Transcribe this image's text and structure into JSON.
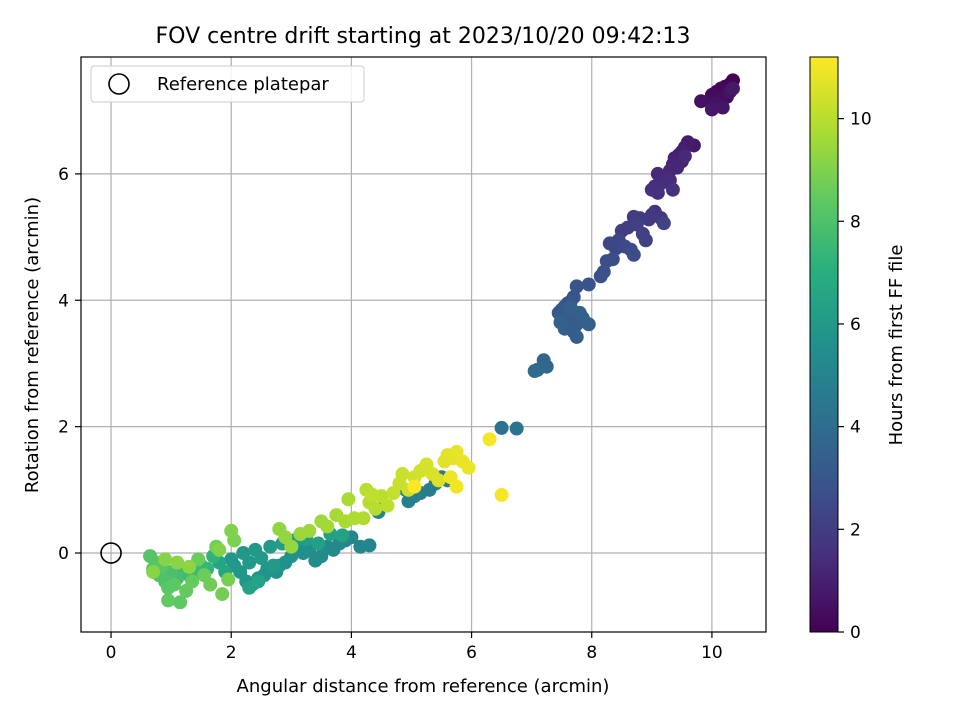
{
  "chart_data": {
    "type": "scatter",
    "title": "FOV centre drift starting at 2023/10/20 09:42:13",
    "xlabel": "Angular distance from reference (arcmin)",
    "ylabel": "Rotation from reference (arcmin)",
    "xlim": [
      -0.5,
      10.9
    ],
    "ylim": [
      -1.25,
      7.85
    ],
    "xticks": [
      0,
      2,
      4,
      6,
      8,
      10
    ],
    "yticks": [
      0,
      2,
      4,
      6
    ],
    "grid": true,
    "legend": {
      "location": "upper-left",
      "entries": [
        {
          "label": "Reference platepar",
          "marker": "open-circle"
        }
      ]
    },
    "reference_point": {
      "x": 0,
      "y": 0
    },
    "colorbar": {
      "label": "Hours from first FF file",
      "min": 0,
      "max": 11.2,
      "ticks": [
        0,
        2,
        4,
        6,
        8,
        10
      ],
      "colormap": "viridis"
    },
    "points": [
      {
        "x": 10.35,
        "y": 7.48,
        "c": 0.05
      },
      {
        "x": 10.3,
        "y": 7.42,
        "c": 0.1
      },
      {
        "x": 10.22,
        "y": 7.38,
        "c": 0.15
      },
      {
        "x": 10.15,
        "y": 7.35,
        "c": 0.2
      },
      {
        "x": 10.08,
        "y": 7.3,
        "c": 0.25
      },
      {
        "x": 10.0,
        "y": 7.25,
        "c": 0.3
      },
      {
        "x": 10.25,
        "y": 7.22,
        "c": 0.35
      },
      {
        "x": 10.12,
        "y": 7.18,
        "c": 0.4
      },
      {
        "x": 9.98,
        "y": 7.15,
        "c": 0.45
      },
      {
        "x": 9.82,
        "y": 7.15,
        "c": 0.5
      },
      {
        "x": 10.05,
        "y": 7.1,
        "c": 0.55
      },
      {
        "x": 10.3,
        "y": 7.3,
        "c": 0.6
      },
      {
        "x": 10.18,
        "y": 7.05,
        "c": 0.65
      },
      {
        "x": 10.0,
        "y": 7.02,
        "c": 0.7
      },
      {
        "x": 10.35,
        "y": 7.35,
        "c": 0.72
      },
      {
        "x": 9.7,
        "y": 6.45,
        "c": 0.8
      },
      {
        "x": 9.6,
        "y": 6.5,
        "c": 0.85
      },
      {
        "x": 9.55,
        "y": 6.42,
        "c": 0.9
      },
      {
        "x": 9.5,
        "y": 6.35,
        "c": 0.95
      },
      {
        "x": 9.45,
        "y": 6.3,
        "c": 1.0
      },
      {
        "x": 9.38,
        "y": 6.25,
        "c": 1.05
      },
      {
        "x": 9.5,
        "y": 6.2,
        "c": 1.1
      },
      {
        "x": 9.35,
        "y": 6.15,
        "c": 1.15
      },
      {
        "x": 9.42,
        "y": 6.1,
        "c": 1.2
      },
      {
        "x": 9.3,
        "y": 6.05,
        "c": 1.25
      },
      {
        "x": 9.55,
        "y": 6.28,
        "c": 1.28
      },
      {
        "x": 9.1,
        "y": 6.0,
        "c": 1.3
      },
      {
        "x": 9.2,
        "y": 5.95,
        "c": 1.35
      },
      {
        "x": 9.3,
        "y": 5.9,
        "c": 1.4
      },
      {
        "x": 9.15,
        "y": 5.85,
        "c": 1.45
      },
      {
        "x": 9.05,
        "y": 5.8,
        "c": 1.5
      },
      {
        "x": 9.0,
        "y": 5.75,
        "c": 1.55
      },
      {
        "x": 9.1,
        "y": 5.7,
        "c": 1.6
      },
      {
        "x": 9.35,
        "y": 5.75,
        "c": 1.62
      },
      {
        "x": 9.05,
        "y": 5.4,
        "c": 1.7
      },
      {
        "x": 9.0,
        "y": 5.35,
        "c": 1.75
      },
      {
        "x": 9.15,
        "y": 5.3,
        "c": 1.8
      },
      {
        "x": 8.95,
        "y": 5.28,
        "c": 1.85
      },
      {
        "x": 8.8,
        "y": 5.3,
        "c": 1.9
      },
      {
        "x": 8.7,
        "y": 5.32,
        "c": 1.95
      },
      {
        "x": 8.6,
        "y": 5.15,
        "c": 2.0
      },
      {
        "x": 8.5,
        "y": 5.1,
        "c": 2.05
      },
      {
        "x": 8.75,
        "y": 5.2,
        "c": 2.1
      },
      {
        "x": 8.85,
        "y": 5.05,
        "c": 2.15
      },
      {
        "x": 8.9,
        "y": 4.95,
        "c": 2.2
      },
      {
        "x": 9.2,
        "y": 5.22,
        "c": 2.22
      },
      {
        "x": 8.45,
        "y": 4.95,
        "c": 2.3
      },
      {
        "x": 8.3,
        "y": 4.9,
        "c": 2.35
      },
      {
        "x": 8.4,
        "y": 4.82,
        "c": 2.4
      },
      {
        "x": 8.55,
        "y": 4.85,
        "c": 2.45
      },
      {
        "x": 8.65,
        "y": 4.8,
        "c": 2.5
      },
      {
        "x": 8.7,
        "y": 4.72,
        "c": 2.55
      },
      {
        "x": 8.35,
        "y": 4.65,
        "c": 2.6
      },
      {
        "x": 8.25,
        "y": 4.62,
        "c": 2.65
      },
      {
        "x": 8.2,
        "y": 4.45,
        "c": 2.7
      },
      {
        "x": 8.15,
        "y": 4.38,
        "c": 2.75
      },
      {
        "x": 7.95,
        "y": 4.25,
        "c": 2.8
      },
      {
        "x": 7.75,
        "y": 4.22,
        "c": 2.85
      },
      {
        "x": 7.7,
        "y": 4.05,
        "c": 2.9
      },
      {
        "x": 7.65,
        "y": 3.98,
        "c": 2.95
      },
      {
        "x": 7.6,
        "y": 3.95,
        "c": 3.0
      },
      {
        "x": 7.55,
        "y": 3.9,
        "c": 3.02
      },
      {
        "x": 7.5,
        "y": 3.85,
        "c": 3.05
      },
      {
        "x": 7.45,
        "y": 3.8,
        "c": 3.08
      },
      {
        "x": 7.5,
        "y": 3.75,
        "c": 3.1
      },
      {
        "x": 7.55,
        "y": 3.7,
        "c": 3.12
      },
      {
        "x": 7.6,
        "y": 3.82,
        "c": 3.15
      },
      {
        "x": 7.65,
        "y": 3.75,
        "c": 3.18
      },
      {
        "x": 7.7,
        "y": 3.68,
        "c": 3.2
      },
      {
        "x": 7.75,
        "y": 3.62,
        "c": 3.22
      },
      {
        "x": 7.6,
        "y": 3.6,
        "c": 3.25
      },
      {
        "x": 7.55,
        "y": 3.55,
        "c": 3.28
      },
      {
        "x": 7.7,
        "y": 3.5,
        "c": 3.3
      },
      {
        "x": 7.75,
        "y": 3.42,
        "c": 3.32
      },
      {
        "x": 7.65,
        "y": 3.88,
        "c": 3.35
      },
      {
        "x": 7.8,
        "y": 3.8,
        "c": 3.38
      },
      {
        "x": 7.85,
        "y": 3.72,
        "c": 3.4
      },
      {
        "x": 7.95,
        "y": 3.62,
        "c": 3.42
      },
      {
        "x": 7.48,
        "y": 3.65,
        "c": 3.45
      },
      {
        "x": 7.2,
        "y": 3.05,
        "c": 3.6
      },
      {
        "x": 7.25,
        "y": 2.95,
        "c": 3.7
      },
      {
        "x": 7.1,
        "y": 2.9,
        "c": 3.8
      },
      {
        "x": 7.05,
        "y": 2.88,
        "c": 3.85
      },
      {
        "x": 6.5,
        "y": 1.98,
        "c": 4.2
      },
      {
        "x": 6.75,
        "y": 1.97,
        "c": 4.3
      },
      {
        "x": 5.5,
        "y": 1.2,
        "c": 4.5
      },
      {
        "x": 5.6,
        "y": 1.15,
        "c": 4.55
      },
      {
        "x": 5.4,
        "y": 1.1,
        "c": 4.6
      },
      {
        "x": 5.3,
        "y": 1.0,
        "c": 4.65
      },
      {
        "x": 5.15,
        "y": 0.95,
        "c": 4.7
      },
      {
        "x": 5.05,
        "y": 0.9,
        "c": 4.75
      },
      {
        "x": 4.95,
        "y": 0.82,
        "c": 4.8
      },
      {
        "x": 4.9,
        "y": 1.0,
        "c": 4.85
      },
      {
        "x": 4.55,
        "y": 0.75,
        "c": 4.9
      },
      {
        "x": 4.45,
        "y": 0.65,
        "c": 4.95
      },
      {
        "x": 4.3,
        "y": 0.12,
        "c": 5.0
      },
      {
        "x": 4.15,
        "y": 0.1,
        "c": 5.05
      },
      {
        "x": 4.0,
        "y": 0.25,
        "c": 5.1
      },
      {
        "x": 3.9,
        "y": 0.2,
        "c": 5.15
      },
      {
        "x": 3.8,
        "y": 0.15,
        "c": 5.2
      },
      {
        "x": 3.7,
        "y": 0.05,
        "c": 5.25
      },
      {
        "x": 3.6,
        "y": 0.1,
        "c": 5.3
      },
      {
        "x": 3.5,
        "y": -0.05,
        "c": 5.35
      },
      {
        "x": 3.4,
        "y": -0.12,
        "c": 5.4
      },
      {
        "x": 3.3,
        "y": 0.05,
        "c": 5.45
      },
      {
        "x": 3.2,
        "y": 0.0,
        "c": 5.5
      },
      {
        "x": 3.1,
        "y": 0.1,
        "c": 5.55
      },
      {
        "x": 3.0,
        "y": -0.05,
        "c": 5.6
      },
      {
        "x": 2.9,
        "y": -0.15,
        "c": 5.62
      },
      {
        "x": 2.8,
        "y": -0.2,
        "c": 5.65
      },
      {
        "x": 2.75,
        "y": -0.3,
        "c": 5.7
      },
      {
        "x": 2.6,
        "y": -0.25,
        "c": 5.72
      },
      {
        "x": 2.55,
        "y": -0.35,
        "c": 5.75
      },
      {
        "x": 2.45,
        "y": -0.4,
        "c": 5.78
      },
      {
        "x": 2.35,
        "y": -0.5,
        "c": 5.8
      },
      {
        "x": 2.25,
        "y": -0.45,
        "c": 5.82
      },
      {
        "x": 2.15,
        "y": -0.3,
        "c": 5.85
      },
      {
        "x": 2.05,
        "y": -0.2,
        "c": 5.88
      },
      {
        "x": 2.0,
        "y": -0.1,
        "c": 5.9
      },
      {
        "x": 2.2,
        "y": 0.0,
        "c": 5.92
      },
      {
        "x": 2.3,
        "y": -0.15,
        "c": 5.95
      },
      {
        "x": 2.4,
        "y": 0.05,
        "c": 5.98
      },
      {
        "x": 2.5,
        "y": -0.08,
        "c": 6.0
      },
      {
        "x": 2.65,
        "y": 0.1,
        "c": 6.02
      },
      {
        "x": 2.7,
        "y": -0.2,
        "c": 6.05
      },
      {
        "x": 2.85,
        "y": 0.15,
        "c": 6.1
      },
      {
        "x": 3.05,
        "y": 0.2,
        "c": 6.15
      },
      {
        "x": 3.25,
        "y": 0.22,
        "c": 6.2
      },
      {
        "x": 3.45,
        "y": 0.15,
        "c": 6.25
      },
      {
        "x": 3.65,
        "y": 0.3,
        "c": 6.3
      },
      {
        "x": 3.85,
        "y": 0.28,
        "c": 6.35
      },
      {
        "x": 2.3,
        "y": -0.55,
        "c": 6.4
      },
      {
        "x": 2.45,
        "y": -0.45,
        "c": 6.45
      },
      {
        "x": 1.9,
        "y": -0.3,
        "c": 6.5
      },
      {
        "x": 1.8,
        "y": -0.15,
        "c": 6.55
      },
      {
        "x": 1.7,
        "y": -0.05,
        "c": 7.2
      },
      {
        "x": 1.6,
        "y": -0.25,
        "c": 7.3
      },
      {
        "x": 1.5,
        "y": -0.2,
        "c": 7.4
      },
      {
        "x": 1.4,
        "y": -0.3,
        "c": 7.5
      },
      {
        "x": 1.3,
        "y": -0.35,
        "c": 7.6
      },
      {
        "x": 1.2,
        "y": -0.25,
        "c": 7.7
      },
      {
        "x": 1.1,
        "y": -0.4,
        "c": 7.8
      },
      {
        "x": 1.0,
        "y": -0.3,
        "c": 7.9
      },
      {
        "x": 0.9,
        "y": -0.45,
        "c": 8.0
      },
      {
        "x": 0.8,
        "y": -0.35,
        "c": 8.05
      },
      {
        "x": 0.7,
        "y": -0.25,
        "c": 8.1
      },
      {
        "x": 0.65,
        "y": -0.05,
        "c": 8.15
      },
      {
        "x": 0.75,
        "y": -0.15,
        "c": 8.2
      },
      {
        "x": 0.85,
        "y": -0.2,
        "c": 8.25
      },
      {
        "x": 0.95,
        "y": -0.55,
        "c": 8.3
      },
      {
        "x": 1.05,
        "y": -0.5,
        "c": 8.35
      },
      {
        "x": 1.15,
        "y": -0.78,
        "c": 8.4
      },
      {
        "x": 0.95,
        "y": -0.75,
        "c": 8.45
      },
      {
        "x": 1.25,
        "y": -0.6,
        "c": 8.5
      },
      {
        "x": 1.35,
        "y": -0.45,
        "c": 8.55
      },
      {
        "x": 1.45,
        "y": -0.1,
        "c": 8.6
      },
      {
        "x": 1.55,
        "y": -0.35,
        "c": 8.65
      },
      {
        "x": 1.65,
        "y": -0.5,
        "c": 8.7
      },
      {
        "x": 1.75,
        "y": 0.1,
        "c": 8.75
      },
      {
        "x": 1.85,
        "y": -0.65,
        "c": 8.8
      },
      {
        "x": 1.95,
        "y": -0.42,
        "c": 8.85
      },
      {
        "x": 2.05,
        "y": 0.2,
        "c": 8.9
      },
      {
        "x": 2.0,
        "y": 0.35,
        "c": 9.0
      },
      {
        "x": 1.8,
        "y": 0.05,
        "c": 9.05
      },
      {
        "x": 0.9,
        "y": -0.1,
        "c": 9.1
      },
      {
        "x": 0.7,
        "y": -0.3,
        "c": 9.15
      },
      {
        "x": 1.1,
        "y": -0.15,
        "c": 9.2
      },
      {
        "x": 1.3,
        "y": -0.22,
        "c": 9.25
      },
      {
        "x": 2.8,
        "y": 0.38,
        "c": 9.3
      },
      {
        "x": 2.9,
        "y": 0.25,
        "c": 9.35
      },
      {
        "x": 3.0,
        "y": 0.1,
        "c": 9.4
      },
      {
        "x": 3.15,
        "y": 0.3,
        "c": 9.45
      },
      {
        "x": 3.3,
        "y": 0.35,
        "c": 9.5
      },
      {
        "x": 3.5,
        "y": 0.5,
        "c": 9.55
      },
      {
        "x": 3.6,
        "y": 0.42,
        "c": 9.6
      },
      {
        "x": 3.75,
        "y": 0.6,
        "c": 9.65
      },
      {
        "x": 3.9,
        "y": 0.5,
        "c": 9.7
      },
      {
        "x": 3.95,
        "y": 0.85,
        "c": 9.75
      },
      {
        "x": 4.05,
        "y": 0.55,
        "c": 9.8
      },
      {
        "x": 4.2,
        "y": 0.55,
        "c": 9.85
      },
      {
        "x": 4.3,
        "y": 0.8,
        "c": 9.9
      },
      {
        "x": 4.4,
        "y": 0.7,
        "c": 9.95
      },
      {
        "x": 4.25,
        "y": 1.0,
        "c": 10.0
      },
      {
        "x": 4.5,
        "y": 0.9,
        "c": 10.05
      },
      {
        "x": 4.6,
        "y": 0.75,
        "c": 10.1
      },
      {
        "x": 4.35,
        "y": 0.92,
        "c": 10.12
      },
      {
        "x": 4.7,
        "y": 0.95,
        "c": 10.2
      },
      {
        "x": 4.8,
        "y": 1.1,
        "c": 10.25
      },
      {
        "x": 4.85,
        "y": 1.25,
        "c": 10.3
      },
      {
        "x": 4.95,
        "y": 1.0,
        "c": 10.35
      },
      {
        "x": 5.05,
        "y": 1.2,
        "c": 10.4
      },
      {
        "x": 5.15,
        "y": 1.3,
        "c": 10.45
      },
      {
        "x": 5.25,
        "y": 1.4,
        "c": 10.5
      },
      {
        "x": 5.35,
        "y": 1.25,
        "c": 10.55
      },
      {
        "x": 5.45,
        "y": 1.15,
        "c": 10.6
      },
      {
        "x": 5.55,
        "y": 1.45,
        "c": 10.65
      },
      {
        "x": 5.6,
        "y": 1.55,
        "c": 10.7
      },
      {
        "x": 5.7,
        "y": 1.5,
        "c": 10.75
      },
      {
        "x": 5.75,
        "y": 1.6,
        "c": 10.8
      },
      {
        "x": 5.85,
        "y": 1.45,
        "c": 10.85
      },
      {
        "x": 5.95,
        "y": 1.35,
        "c": 10.9
      },
      {
        "x": 5.65,
        "y": 1.2,
        "c": 10.95
      },
      {
        "x": 5.75,
        "y": 1.05,
        "c": 11.0
      },
      {
        "x": 6.3,
        "y": 1.8,
        "c": 11.05
      },
      {
        "x": 6.5,
        "y": 0.92,
        "c": 11.1
      },
      {
        "x": 5.05,
        "y": 1.05,
        "c": 11.15
      }
    ]
  }
}
